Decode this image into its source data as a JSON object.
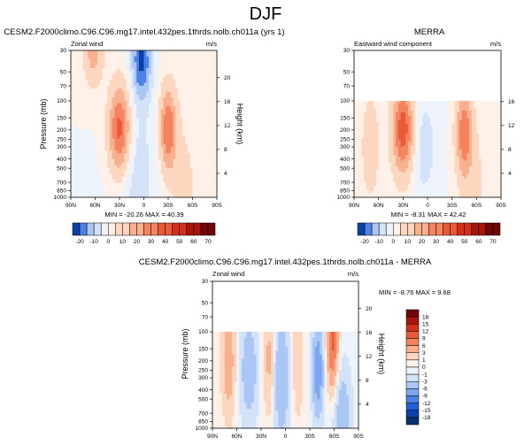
{
  "suptitle": "DJF",
  "colors": {
    "neg": [
      "#08306b",
      "#0d3fa8",
      "#1f5fd6",
      "#4a82e6",
      "#7aa7ef",
      "#a9c6f4",
      "#d3e2f8",
      "#edf3fb"
    ],
    "pos": [
      "#fff1e8",
      "#fcd6bf",
      "#f9b08f",
      "#f4845f",
      "#ea5a37",
      "#d2301c",
      "#a8150d",
      "#700606"
    ]
  },
  "chart_data": [
    {
      "type": "heatmap",
      "id": "p1",
      "title": "CESM2.F2000climo.C96.C96.mg17.intel.432pes.1thrds.nolb.ch011a (yrs 1)",
      "left_string": "Zonal wind",
      "right_string": "m/s",
      "ylabel": "Pressure (mb)",
      "ylabel_right": "Height (km)",
      "x_ticks": [
        "90N",
        "60N",
        "30N",
        "0",
        "30S",
        "60S",
        "90S"
      ],
      "x_values": [
        90,
        60,
        30,
        0,
        -30,
        -60,
        -90
      ],
      "y_ticks": [
        "30",
        "50",
        "70",
        "100",
        "150",
        "200",
        "250",
        "300",
        "400",
        "500",
        "700",
        "850",
        "1000"
      ],
      "y_values": [
        30,
        50,
        70,
        100,
        150,
        200,
        250,
        300,
        400,
        500,
        700,
        850,
        1000
      ],
      "y_right_ticks": [
        "20",
        "16",
        "12",
        "8",
        "4"
      ],
      "y_right_values": [
        20,
        16,
        12,
        8,
        4
      ],
      "ylim": [
        1000,
        30
      ],
      "y_scale": "log",
      "data_top_pressure": 30,
      "stats": "MIN = -20.26   MAX =  40.39",
      "min": -20.26,
      "max": 40.39,
      "features": [
        {
          "lat": 62,
          "p": 32,
          "amp": 20,
          "wlat": 8,
          "wlog": 0.22
        },
        {
          "lat": 30,
          "p": 200,
          "amp": 40,
          "wlat": 9,
          "wlog": 0.32
        },
        {
          "lat": -30,
          "p": 200,
          "amp": 35,
          "wlat": 7,
          "wlog": 0.3
        },
        {
          "lat": 3,
          "p": 38,
          "amp": -21,
          "wlat": 9,
          "wlog": 0.3
        },
        {
          "lat": 10,
          "p": 550,
          "amp": -8,
          "wlat": 18,
          "wlog": 0.5
        },
        {
          "lat": -50,
          "p": 900,
          "amp": 7,
          "wlat": 12,
          "wlog": 0.6
        }
      ]
    },
    {
      "type": "heatmap",
      "id": "p2",
      "title": "MERRA",
      "left_string": "Eastward wind component",
      "right_string": "m/s",
      "ylabel": "",
      "ylabel_right": "",
      "x_ticks": [
        "90N",
        "60N",
        "30N",
        "0",
        "30S",
        "60S",
        "90S"
      ],
      "x_values": [
        90,
        60,
        30,
        0,
        -30,
        -60,
        -90
      ],
      "y_ticks": [
        "30",
        "50",
        "70",
        "100",
        "150",
        "200",
        "250",
        "300",
        "400",
        "500",
        "700",
        "850",
        "1000"
      ],
      "y_values": [
        30,
        50,
        70,
        100,
        150,
        200,
        250,
        300,
        400,
        500,
        700,
        850,
        1000
      ],
      "y_right_ticks": [
        "16",
        "12",
        "8",
        "4"
      ],
      "y_right_values": [
        16,
        12,
        8,
        4
      ],
      "ylim": [
        1000,
        30
      ],
      "y_scale": "log",
      "data_top_pressure": 100,
      "stats": "MIN =  -8.31   MAX =  42.42",
      "min": -8.31,
      "max": 42.42,
      "features": [
        {
          "lat": 30,
          "p": 200,
          "amp": 42,
          "wlat": 9,
          "wlog": 0.32
        },
        {
          "lat": -45,
          "p": 220,
          "amp": 33,
          "wlat": 7,
          "wlog": 0.32
        },
        {
          "lat": 5,
          "p": 300,
          "amp": -8,
          "wlat": 12,
          "wlog": 0.4
        },
        {
          "lat": 70,
          "p": 300,
          "amp": 8,
          "wlat": 10,
          "wlog": 0.5
        },
        {
          "lat": -60,
          "p": 850,
          "amp": 6,
          "wlat": 12,
          "wlog": 0.5
        }
      ]
    },
    {
      "type": "heatmap",
      "id": "p3",
      "title": "CESM2.F2000climo.C96.C96.mg17.intel.432pes.1thrds.nolb.ch011a - MERRA",
      "left_string": "Zonal wind",
      "right_string": "m/s",
      "ylabel": "Pressure (mb)",
      "ylabel_right": "Height (km)",
      "x_ticks": [
        "90N",
        "60N",
        "30N",
        "0",
        "30S",
        "60S",
        "90S"
      ],
      "x_values": [
        90,
        60,
        30,
        0,
        -30,
        -60,
        -90
      ],
      "y_ticks": [
        "30",
        "50",
        "70",
        "100",
        "150",
        "200",
        "250",
        "300",
        "400",
        "500",
        "700",
        "850",
        "1000"
      ],
      "y_values": [
        30,
        50,
        70,
        100,
        150,
        200,
        250,
        300,
        400,
        500,
        700,
        850,
        1000
      ],
      "y_right_ticks": [
        "20",
        "16",
        "12",
        "8",
        "4"
      ],
      "y_right_values": [
        20,
        16,
        12,
        8,
        4
      ],
      "ylim": [
        1000,
        30
      ],
      "y_scale": "log",
      "data_top_pressure": 100,
      "stats": "MIN =  -8.76   MAX =   9.68",
      "min": -8.76,
      "max": 9.68,
      "features": [
        {
          "lat": -58,
          "p": 130,
          "amp": 9.7,
          "wlat": 5,
          "wlog": 0.35
        },
        {
          "lat": -40,
          "p": 250,
          "amp": -8.7,
          "wlat": 5,
          "wlog": 0.35
        },
        {
          "lat": 5,
          "p": 300,
          "amp": -6,
          "wlat": 7,
          "wlog": 0.45
        },
        {
          "lat": 45,
          "p": 250,
          "amp": -5,
          "wlat": 8,
          "wlog": 0.4
        },
        {
          "lat": 70,
          "p": 200,
          "amp": 5,
          "wlat": 6,
          "wlog": 0.4
        },
        {
          "lat": 20,
          "p": 200,
          "amp": 4,
          "wlat": 5,
          "wlog": 0.4
        },
        {
          "lat": -15,
          "p": 200,
          "amp": 3,
          "wlat": 5,
          "wlog": 0.4
        },
        {
          "lat": -70,
          "p": 800,
          "amp": -5,
          "wlat": 8,
          "wlog": 0.4
        }
      ]
    }
  ],
  "colorbars": [
    {
      "id": "cb_main",
      "orientation": "horizontal",
      "labels": [
        "-20",
        "-10",
        "0",
        "10",
        "20",
        "30",
        "40",
        "50",
        "60",
        "70"
      ],
      "levels": [
        -25,
        -20,
        -15,
        -10,
        -5,
        0,
        5,
        10,
        15,
        20,
        25,
        30,
        35,
        40,
        45,
        50,
        55,
        60,
        65,
        70,
        75
      ]
    },
    {
      "id": "cb_diff",
      "orientation": "vertical",
      "labels": [
        "18",
        "15",
        "12",
        "9",
        "6",
        "3",
        "1",
        "0",
        "-1",
        "-3",
        "-6",
        "-9",
        "-12",
        "-15",
        "-18"
      ],
      "levels": [
        -21,
        -18,
        -15,
        -12,
        -9,
        -6,
        -3,
        -1,
        0,
        1,
        3,
        6,
        9,
        12,
        15,
        18,
        21
      ]
    }
  ]
}
